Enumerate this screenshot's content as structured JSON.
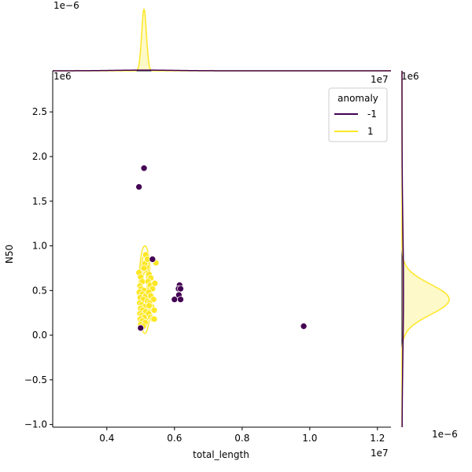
{
  "chart_data": {
    "type": "scatter",
    "xlabel": "total_length",
    "ylabel": "N50",
    "x_offset_label": "1e7",
    "y_offset_label": "1e6",
    "top_marginal_offset_label": "1e−6",
    "right_marginal_offset_label": "1e−6",
    "xlim": [
      2400000,
      12400000
    ],
    "ylim": [
      -1030000,
      2960000
    ],
    "x_ticks": [
      {
        "value": 4000000,
        "label": "0.4"
      },
      {
        "value": 6000000,
        "label": "0.6"
      },
      {
        "value": 8000000,
        "label": "0.8"
      },
      {
        "value": 10000000,
        "label": "1.0"
      },
      {
        "value": 12000000,
        "label": "1.2"
      }
    ],
    "y_ticks": [
      {
        "value": -1000000,
        "label": "−1.0"
      },
      {
        "value": -500000,
        "label": "−0.5"
      },
      {
        "value": 0,
        "label": "0.0"
      },
      {
        "value": 500000,
        "label": "0.5"
      },
      {
        "value": 1000000,
        "label": "1.0"
      },
      {
        "value": 1500000,
        "label": "1.5"
      },
      {
        "value": 2000000,
        "label": "2.0"
      },
      {
        "value": 2500000,
        "label": "2.5"
      }
    ],
    "legend": {
      "title": "anomaly",
      "position": "top-right",
      "entries": [
        {
          "label": "-1",
          "color": "#440154"
        },
        {
          "label": "1",
          "color": "#fde725"
        }
      ]
    },
    "series": [
      {
        "name": "-1",
        "color": "#440154",
        "points": [
          [
            5100000,
            1870000
          ],
          [
            4950000,
            1660000
          ],
          [
            5350000,
            850000
          ],
          [
            6150000,
            560000
          ],
          [
            6120000,
            520000
          ],
          [
            6180000,
            520000
          ],
          [
            6130000,
            450000
          ],
          [
            6000000,
            400000
          ],
          [
            6180000,
            400000
          ],
          [
            9820000,
            100000
          ],
          [
            5000000,
            80000
          ]
        ]
      },
      {
        "name": "1",
        "color": "#fde725",
        "points": [
          [
            4950000,
            700000
          ],
          [
            5000000,
            650000
          ],
          [
            5050000,
            600000
          ],
          [
            4980000,
            550000
          ],
          [
            5020000,
            520000
          ],
          [
            5100000,
            500000
          ],
          [
            4960000,
            480000
          ],
          [
            5050000,
            460000
          ],
          [
            5150000,
            440000
          ],
          [
            4990000,
            420000
          ],
          [
            5080000,
            400000
          ],
          [
            5200000,
            380000
          ],
          [
            4970000,
            360000
          ],
          [
            5030000,
            340000
          ],
          [
            5120000,
            320000
          ],
          [
            5000000,
            300000
          ],
          [
            5060000,
            280000
          ],
          [
            5150000,
            260000
          ],
          [
            4980000,
            240000
          ],
          [
            5040000,
            220000
          ],
          [
            5100000,
            200000
          ],
          [
            4990000,
            180000
          ],
          [
            5050000,
            160000
          ],
          [
            5130000,
            140000
          ],
          [
            5000000,
            120000
          ],
          [
            5080000,
            100000
          ],
          [
            5200000,
            720000
          ],
          [
            5250000,
            680000
          ],
          [
            5300000,
            640000
          ],
          [
            5220000,
            600000
          ],
          [
            5280000,
            560000
          ],
          [
            5350000,
            520000
          ],
          [
            5240000,
            480000
          ],
          [
            5300000,
            440000
          ],
          [
            5380000,
            400000
          ],
          [
            5260000,
            360000
          ],
          [
            5320000,
            320000
          ],
          [
            5400000,
            280000
          ],
          [
            5240000,
            240000
          ],
          [
            5300000,
            200000
          ],
          [
            5360000,
            180000
          ],
          [
            5180000,
            760000
          ],
          [
            5120000,
            800000
          ],
          [
            5450000,
            810000
          ],
          [
            5420000,
            580000
          ],
          [
            5400000,
            180000
          ],
          [
            5150000,
            900000
          ],
          [
            5200000,
            850000
          ],
          [
            5100000,
            750000
          ],
          [
            5250000,
            330000
          ]
        ]
      }
    ],
    "contour_1": {
      "x_range": [
        4950000,
        5300000
      ],
      "y_range": [
        20000,
        1000000
      ]
    },
    "marginal_x": {
      "series": [
        {
          "name": "1",
          "peak_x": 5100000,
          "peak_density": 7.2e-06
        },
        {
          "name": "-1",
          "peak_x": 5100000,
          "peak_density": 8e-08
        }
      ],
      "ylim": [
        0,
        7.5e-06
      ]
    },
    "marginal_y": {
      "series": [
        {
          "name": "1",
          "peak_y": 400000,
          "peak_density": 1.9e-06
        },
        {
          "name": "-1",
          "peak_y": 500000,
          "peak_density": 6e-08
        }
      ]
    }
  }
}
